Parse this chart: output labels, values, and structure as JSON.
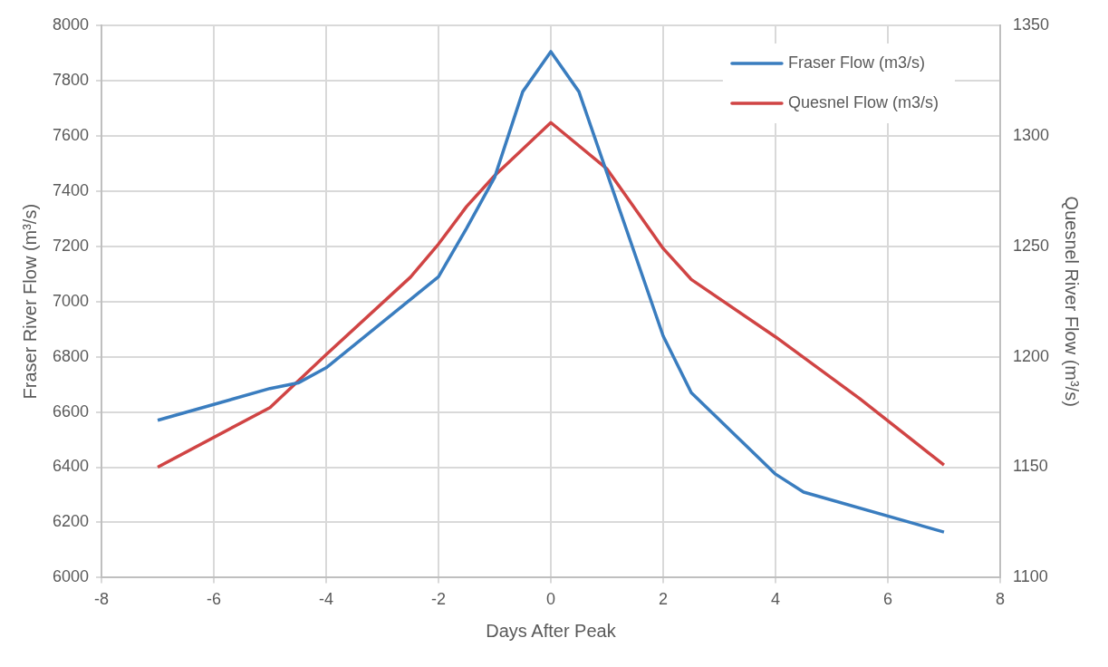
{
  "chart_data": {
    "type": "line",
    "xlabel": "Days After Peak",
    "ylabel": "Fraser River Flow (m³/s)",
    "y2label": "Quesnel River Flow (m³/s)",
    "xlim": [
      -8,
      8
    ],
    "xticks": [
      -8,
      -6,
      -4,
      -2,
      0,
      2,
      4,
      6,
      8
    ],
    "ylim": [
      6000,
      8000
    ],
    "yticks": [
      6000,
      6200,
      6400,
      6600,
      6800,
      7000,
      7200,
      7400,
      7600,
      7800,
      8000
    ],
    "y2lim": [
      1100,
      1350
    ],
    "y2ticks": [
      1100,
      1150,
      1200,
      1250,
      1300,
      1350
    ],
    "grid": true,
    "legend": "top right",
    "marker": "none",
    "line_style": "solid",
    "series": [
      {
        "name": "Fraser Flow (m3/s)",
        "color": "#3a7dbf",
        "x": [
          -7,
          -5,
          -4.5,
          -4,
          -2,
          -1.5,
          -1,
          -0.5,
          0,
          0.5,
          2,
          2.5,
          4,
          4.5,
          7
        ],
        "values": [
          6570,
          6685,
          6705,
          6760,
          7090,
          7265,
          7450,
          7760,
          7905,
          7760,
          6875,
          6670,
          6375,
          6310,
          6165
        ]
      },
      {
        "name": "Quesnel Flow (m3/s)",
        "color": "#d04444",
        "axis": "y2",
        "x": [
          -7,
          -5,
          -4,
          -2.5,
          -2,
          -1.5,
          -1,
          0,
          1,
          2,
          2.5,
          4,
          5.5,
          7
        ],
        "values": [
          1150,
          1177,
          1201,
          1236,
          1251,
          1268,
          1282,
          1306,
          1285,
          1249,
          1235,
          1209,
          1181,
          1151
        ]
      }
    ]
  }
}
